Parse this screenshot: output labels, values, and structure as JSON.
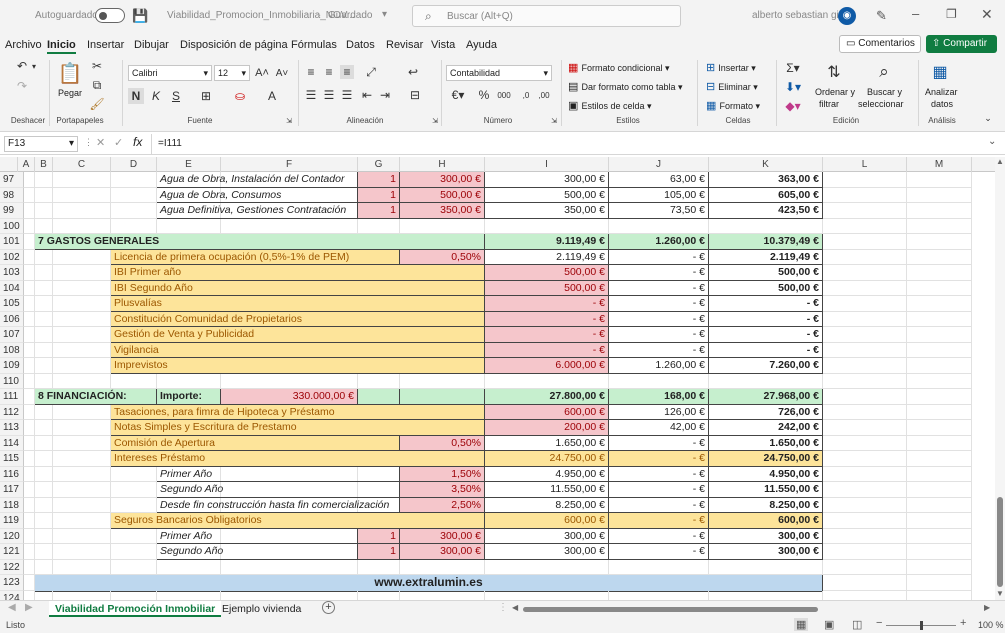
{
  "title": {
    "autosave_label": "Autoguardado",
    "filename": "Viabilidad_Promocion_Inmobiliaria_NOV...",
    "saved_status": "Guardado",
    "search_placeholder": "Buscar (Alt+Q)",
    "user": "alberto sebastian gil"
  },
  "menu": [
    "Archivo",
    "Inicio",
    "Insertar",
    "Dibujar",
    "Disposición de página",
    "Fórmulas",
    "Datos",
    "Revisar",
    "Vista",
    "Ayuda"
  ],
  "menu_active": "Inicio",
  "comments_label": "Comentarios",
  "share_label": "Compartir",
  "ribbon": {
    "paste": "Pegar",
    "font_name": "Calibri",
    "font_size": "12",
    "number_format": "Contabilidad",
    "cond_format": "Formato condicional",
    "table_format": "Dar formato como tabla",
    "cell_styles": "Estilos de celda",
    "insert": "Insertar",
    "delete": "Eliminar",
    "format": "Formato",
    "sort_filter_1": "Ordenar y",
    "sort_filter_2": "filtrar",
    "find_select_1": "Buscar y",
    "find_select_2": "seleccionar",
    "analyze_1": "Analizar",
    "analyze_2": "datos",
    "bold": "N",
    "italic": "K",
    "underline": "S",
    "groups": [
      "Deshacer",
      "Portapapeles",
      "Fuente",
      "Alineación",
      "Número",
      "Estilos",
      "Celdas",
      "Edición",
      "Análisis"
    ]
  },
  "formula_bar": {
    "name_box": "F13",
    "formula": "=I111"
  },
  "columns": [
    "A",
    "B",
    "C",
    "D",
    "E",
    "F",
    "G",
    "H",
    "I",
    "J",
    "K",
    "L",
    "M"
  ],
  "rows": [
    {
      "n": "97",
      "cells": [
        {
          "col": "E",
          "w": "EFG",
          "text": "Agua de Obra, Instalación del Contador",
          "style": "it b"
        },
        {
          "col": "G",
          "text": "1",
          "style": "pink r red b"
        },
        {
          "col": "H",
          "text": "300,00 €",
          "style": "pink r red b"
        },
        {
          "col": "I",
          "text": "300,00 €",
          "style": "r b"
        },
        {
          "col": "J",
          "text": "63,00 €",
          "style": "r b"
        },
        {
          "col": "K",
          "text": "363,00 €",
          "style": "r bd b"
        }
      ]
    },
    {
      "n": "98",
      "cells": [
        {
          "col": "E",
          "text": "Agua de Obra, Consumos",
          "style": "it b"
        },
        {
          "col": "G",
          "text": "1",
          "style": "pink r red b"
        },
        {
          "col": "H",
          "text": "500,00 €",
          "style": "pink r red b"
        },
        {
          "col": "I",
          "text": "500,00 €",
          "style": "r b"
        },
        {
          "col": "J",
          "text": "105,00 €",
          "style": "r b"
        },
        {
          "col": "K",
          "text": "605,00 €",
          "style": "r bd b"
        }
      ]
    },
    {
      "n": "99",
      "cells": [
        {
          "col": "E",
          "text": "Agua Definitiva, Gestiones Contratación",
          "style": "it b"
        },
        {
          "col": "G",
          "text": "1",
          "style": "pink r red b"
        },
        {
          "col": "H",
          "text": "350,00 €",
          "style": "pink r red b"
        },
        {
          "col": "I",
          "text": "350,00 €",
          "style": "r b"
        },
        {
          "col": "J",
          "text": "73,50 €",
          "style": "r b"
        },
        {
          "col": "K",
          "text": "423,50 €",
          "style": "r bd b"
        }
      ]
    },
    {
      "n": "100",
      "cells": []
    },
    {
      "n": "101",
      "cells": [
        {
          "col": "B",
          "text": "7 GASTOS GENERALES",
          "style": "grn bd b",
          "span": "B-H"
        },
        {
          "col": "I",
          "text": "9.119,49 €",
          "style": "grn r bd b"
        },
        {
          "col": "J",
          "text": "1.260,00 €",
          "style": "grn r bd b"
        },
        {
          "col": "K",
          "text": "10.379,49 €",
          "style": "grn r bd b"
        }
      ]
    },
    {
      "n": "102",
      "cells": [
        {
          "col": "D",
          "text": "Licencia de primera ocupación (0,5%-1% de PEM)",
          "style": "yel brn b",
          "span": "D-G"
        },
        {
          "col": "H",
          "text": "0,50%",
          "style": "pink r red b"
        },
        {
          "col": "I",
          "text": "2.119,49 €",
          "style": "r b"
        },
        {
          "col": "J",
          "text": "-    €",
          "style": "r b"
        },
        {
          "col": "K",
          "text": "2.119,49 €",
          "style": "r bd b"
        }
      ]
    },
    {
      "n": "103",
      "cells": [
        {
          "col": "D",
          "text": "IBI Primer año",
          "style": "yel brn b",
          "span": "D-H"
        },
        {
          "col": "I",
          "text": "500,00 €",
          "style": "pink r red b"
        },
        {
          "col": "J",
          "text": "-    €",
          "style": "r b"
        },
        {
          "col": "K",
          "text": "500,00 €",
          "style": "r bd b"
        }
      ]
    },
    {
      "n": "104",
      "cells": [
        {
          "col": "D",
          "text": "IBI Segundo Año",
          "style": "yel brn b",
          "span": "D-H"
        },
        {
          "col": "I",
          "text": "500,00 €",
          "style": "pink r red b"
        },
        {
          "col": "J",
          "text": "-    €",
          "style": "r b"
        },
        {
          "col": "K",
          "text": "500,00 €",
          "style": "r bd b"
        }
      ]
    },
    {
      "n": "105",
      "cells": [
        {
          "col": "D",
          "text": "Plusvalías",
          "style": "yel brn b",
          "span": "D-H"
        },
        {
          "col": "I",
          "text": "-    €",
          "style": "pink r red b"
        },
        {
          "col": "J",
          "text": "-    €",
          "style": "r b"
        },
        {
          "col": "K",
          "text": "-    €",
          "style": "r bd b"
        }
      ]
    },
    {
      "n": "106",
      "cells": [
        {
          "col": "D",
          "text": "Constitución Comunidad de Propietarios",
          "style": "yel brn b",
          "span": "D-H"
        },
        {
          "col": "I",
          "text": "-    €",
          "style": "pink r red b"
        },
        {
          "col": "J",
          "text": "-    €",
          "style": "r b"
        },
        {
          "col": "K",
          "text": "-    €",
          "style": "r bd b"
        }
      ]
    },
    {
      "n": "107",
      "cells": [
        {
          "col": "D",
          "text": "Gestión de Venta y Publicidad",
          "style": "yel brn b",
          "span": "D-H"
        },
        {
          "col": "I",
          "text": "-    €",
          "style": "pink r red b"
        },
        {
          "col": "J",
          "text": "-    €",
          "style": "r b"
        },
        {
          "col": "K",
          "text": "-    €",
          "style": "r bd b"
        }
      ]
    },
    {
      "n": "108",
      "cells": [
        {
          "col": "D",
          "text": "Vigilancia",
          "style": "yel brn b",
          "span": "D-H"
        },
        {
          "col": "I",
          "text": "-    €",
          "style": "pink r red b"
        },
        {
          "col": "J",
          "text": "-    €",
          "style": "r b"
        },
        {
          "col": "K",
          "text": "-    €",
          "style": "r bd b"
        }
      ]
    },
    {
      "n": "109",
      "cells": [
        {
          "col": "D",
          "text": "Imprevistos",
          "style": "yel brn b",
          "span": "D-H"
        },
        {
          "col": "I",
          "text": "6.000,00 €",
          "style": "pink r red b"
        },
        {
          "col": "J",
          "text": "1.260,00 €",
          "style": "r b"
        },
        {
          "col": "K",
          "text": "7.260,00 €",
          "style": "r bd b"
        }
      ]
    },
    {
      "n": "110",
      "cells": []
    },
    {
      "n": "111",
      "cells": [
        {
          "col": "B",
          "text": "8 FINANCIACIÓN:",
          "style": "grn bd b",
          "span": "B-D"
        },
        {
          "col": "E",
          "text": "Importe:",
          "style": "grn bd b"
        },
        {
          "col": "F",
          "text": "330.000,00 €",
          "style": "pink r red b"
        },
        {
          "col": "G",
          "text": "",
          "style": "grn b"
        },
        {
          "col": "H",
          "text": "",
          "style": "grn b"
        },
        {
          "col": "I",
          "text": "27.800,00 €",
          "style": "grn r bd b"
        },
        {
          "col": "J",
          "text": "168,00 €",
          "style": "grn r bd b"
        },
        {
          "col": "K",
          "text": "27.968,00 €",
          "style": "grn r bd b"
        }
      ]
    },
    {
      "n": "112",
      "cells": [
        {
          "col": "D",
          "text": "Tasaciones, para fimra de Hipoteca y Préstamo",
          "style": "yel brn b",
          "span": "D-H"
        },
        {
          "col": "I",
          "text": "600,00 €",
          "style": "pink r red b"
        },
        {
          "col": "J",
          "text": "126,00 €",
          "style": "r b"
        },
        {
          "col": "K",
          "text": "726,00 €",
          "style": "r bd b"
        }
      ]
    },
    {
      "n": "113",
      "cells": [
        {
          "col": "D",
          "text": "Notas Simples y Escritura de Prestamo",
          "style": "yel brn b",
          "span": "D-H"
        },
        {
          "col": "I",
          "text": "200,00 €",
          "style": "pink r red b"
        },
        {
          "col": "J",
          "text": "42,00 €",
          "style": "r b"
        },
        {
          "col": "K",
          "text": "242,00 €",
          "style": "r bd b"
        }
      ]
    },
    {
      "n": "114",
      "cells": [
        {
          "col": "D",
          "text": "Comisión de Apertura",
          "style": "yel brn b",
          "span": "D-G"
        },
        {
          "col": "H",
          "text": "0,50%",
          "style": "pink r red b"
        },
        {
          "col": "I",
          "text": "1.650,00 €",
          "style": "r b"
        },
        {
          "col": "J",
          "text": "-    €",
          "style": "r b"
        },
        {
          "col": "K",
          "text": "1.650,00 €",
          "style": "r bd b"
        }
      ]
    },
    {
      "n": "115",
      "cells": [
        {
          "col": "D",
          "text": "Intereses Préstamo",
          "style": "yel brn b",
          "span": "D-H"
        },
        {
          "col": "I",
          "text": "24.750,00 €",
          "style": "yel r brn b"
        },
        {
          "col": "J",
          "text": "-    €",
          "style": "yel r brn b"
        },
        {
          "col": "K",
          "text": "24.750,00 €",
          "style": "yel r bd b"
        }
      ]
    },
    {
      "n": "116",
      "cells": [
        {
          "col": "E",
          "text": "Primer Año",
          "style": "it b",
          "span": "E-G"
        },
        {
          "col": "H",
          "text": "1,50%",
          "style": "pink r red b"
        },
        {
          "col": "I",
          "text": "4.950,00 €",
          "style": "r b"
        },
        {
          "col": "J",
          "text": "-    €",
          "style": "r b"
        },
        {
          "col": "K",
          "text": "4.950,00 €",
          "style": "r bd b"
        }
      ]
    },
    {
      "n": "117",
      "cells": [
        {
          "col": "E",
          "text": "Segundo Año",
          "style": "it b",
          "span": "E-G"
        },
        {
          "col": "H",
          "text": "3,50%",
          "style": "pink r red b"
        },
        {
          "col": "I",
          "text": "11.550,00 €",
          "style": "r b"
        },
        {
          "col": "J",
          "text": "-    €",
          "style": "r b"
        },
        {
          "col": "K",
          "text": "11.550,00 €",
          "style": "r bd b"
        }
      ]
    },
    {
      "n": "118",
      "cells": [
        {
          "col": "E",
          "text": "Desde fin construcción hasta fin comercialización",
          "style": "it b",
          "span": "E-G"
        },
        {
          "col": "H",
          "text": "2,50%",
          "style": "pink r red b"
        },
        {
          "col": "I",
          "text": "8.250,00 €",
          "style": "r b"
        },
        {
          "col": "J",
          "text": "-    €",
          "style": "r b"
        },
        {
          "col": "K",
          "text": "8.250,00 €",
          "style": "r bd b"
        }
      ]
    },
    {
      "n": "119",
      "cells": [
        {
          "col": "D",
          "text": "Seguros Bancarios Obligatorios",
          "style": "yel brn b",
          "span": "D-H"
        },
        {
          "col": "I",
          "text": "600,00 €",
          "style": "yel r brn b"
        },
        {
          "col": "J",
          "text": "-    €",
          "style": "yel r brn b"
        },
        {
          "col": "K",
          "text": "600,00 €",
          "style": "yel r bd b"
        }
      ]
    },
    {
      "n": "120",
      "cells": [
        {
          "col": "E",
          "text": "Primer Año",
          "style": "it b",
          "span": "E-F"
        },
        {
          "col": "G",
          "text": "1",
          "style": "pink r red b"
        },
        {
          "col": "H",
          "text": "300,00 €",
          "style": "pink r red b"
        },
        {
          "col": "I",
          "text": "300,00 €",
          "style": "r b"
        },
        {
          "col": "J",
          "text": "-    €",
          "style": "r b"
        },
        {
          "col": "K",
          "text": "300,00 €",
          "style": "r bd b"
        }
      ]
    },
    {
      "n": "121",
      "cells": [
        {
          "col": "E",
          "text": "Segundo Año",
          "style": "it b",
          "span": "E-F"
        },
        {
          "col": "G",
          "text": "1",
          "style": "pink r red b"
        },
        {
          "col": "H",
          "text": "300,00 €",
          "style": "pink r red b"
        },
        {
          "col": "I",
          "text": "300,00 €",
          "style": "r b"
        },
        {
          "col": "J",
          "text": "-    €",
          "style": "r b"
        },
        {
          "col": "K",
          "text": "300,00 €",
          "style": "r bd b"
        }
      ]
    },
    {
      "n": "122",
      "cells": []
    },
    {
      "n": "123",
      "cells": [
        {
          "col": "B",
          "text": "www.extralumin.es",
          "style": "blu ctr bd b",
          "span": "B-K"
        }
      ]
    },
    {
      "n": "124",
      "cells": []
    }
  ],
  "sheets": [
    "Viabilidad Promoción Inmobiliar",
    "Ejemplo vivienda"
  ],
  "active_sheet": "Viabilidad Promoción Inmobiliar",
  "status": {
    "ready": "Listo",
    "zoom": "100 %"
  },
  "colors": {
    "accent": "#107c41",
    "header_green": "#c6efce",
    "input_pink": "#f5c6cb",
    "label_yellow": "#fde49a",
    "footer_blue": "#bdd7ee"
  }
}
